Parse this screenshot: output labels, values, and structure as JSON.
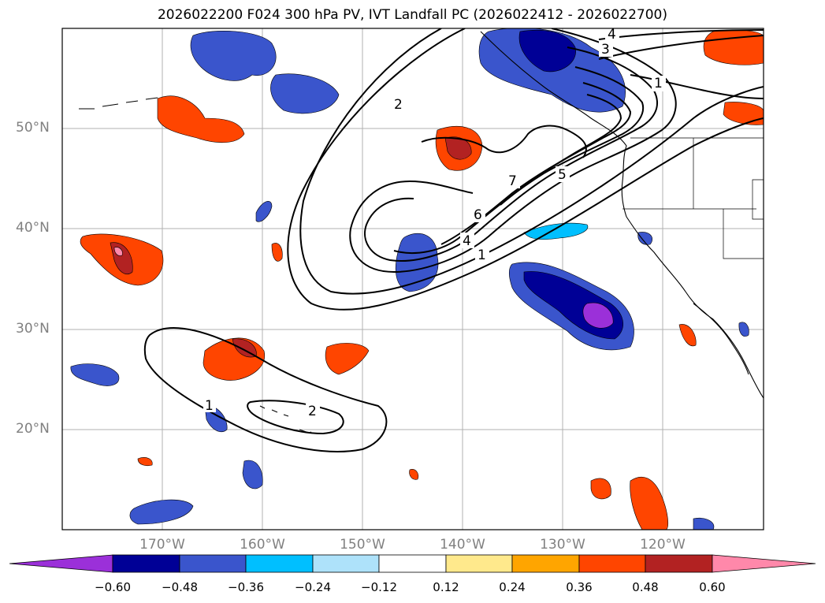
{
  "title": "2026022200 F024 300 hPa PV, IVT Landfall PC (2026022412 - 2026022700)",
  "axes": {
    "lat_labels": [
      "50°N",
      "40°N",
      "30°N",
      "20°N"
    ],
    "lon_labels": [
      "170°W",
      "160°W",
      "150°W",
      "140°W",
      "130°W",
      "120°W"
    ],
    "lat_range": [
      10,
      60
    ],
    "lon_range": [
      -180,
      -110
    ]
  },
  "contour_labels": [
    "4",
    "3",
    "2",
    "1",
    "7",
    "5",
    "6",
    "4",
    "1",
    "2",
    "1"
  ],
  "colorbar": {
    "ticks": [
      "−0.60",
      "−0.48",
      "−0.36",
      "−0.24",
      "−0.12",
      "0.12",
      "0.24",
      "0.36",
      "0.48",
      "0.60"
    ],
    "colors": [
      "#9b30d9",
      "#000096",
      "#3a55cc",
      "#00bfff",
      "#aee2fa",
      "#ffffff",
      "#ffe98c",
      "#ffa500",
      "#ff4500",
      "#b22222",
      "#ff88aa"
    ]
  },
  "colors": {
    "land_border": "#000000",
    "grid": "#b0b0b0",
    "label_gray": "#808080"
  }
}
